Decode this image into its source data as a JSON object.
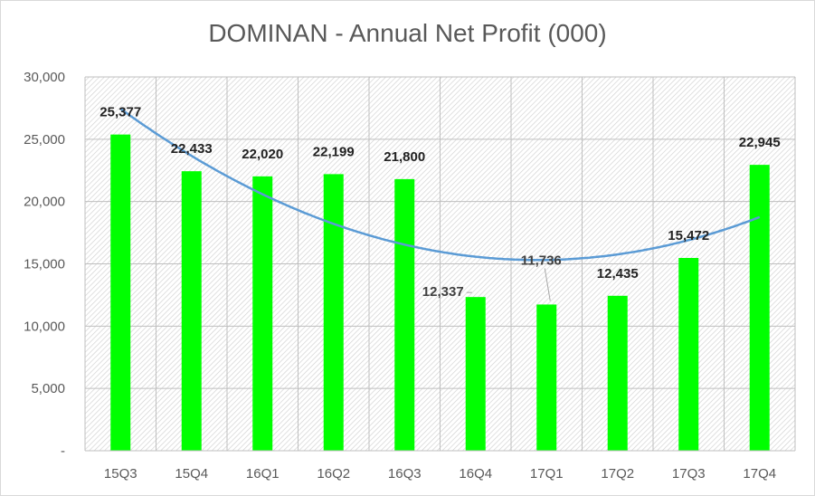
{
  "chart_data": {
    "type": "bar",
    "title": "DOMINAN - Annual Net Profit (000)",
    "categories": [
      "15Q3",
      "15Q4",
      "16Q1",
      "16Q2",
      "16Q3",
      "16Q4",
      "17Q1",
      "17Q2",
      "17Q3",
      "17Q4"
    ],
    "values": [
      25377,
      22433,
      22020,
      22199,
      21800,
      12337,
      11736,
      12435,
      15472,
      22945
    ],
    "data_labels": [
      "25,377",
      "22,433",
      "22,020",
      "22,199",
      "21,800",
      "12,337",
      "11,736",
      "12,435",
      "15,472",
      "22,945"
    ],
    "ylim": [
      0,
      30000
    ],
    "yticks": [
      0,
      5000,
      10000,
      15000,
      20000,
      25000,
      30000
    ],
    "ytick_labels": [
      "-",
      "5,000",
      "10,000",
      "15,000",
      "20,000",
      "25,000",
      "30,000"
    ],
    "xlabel": "",
    "ylabel": "",
    "grid": true,
    "legend": "none",
    "trendline": {
      "type": "polynomial",
      "order": 2
    },
    "colors": {
      "bar": "#00ff00",
      "trendline": "#5b9bd5",
      "gridline": "#bfbfbf",
      "plot_hatch": "#d0d0d0"
    }
  }
}
